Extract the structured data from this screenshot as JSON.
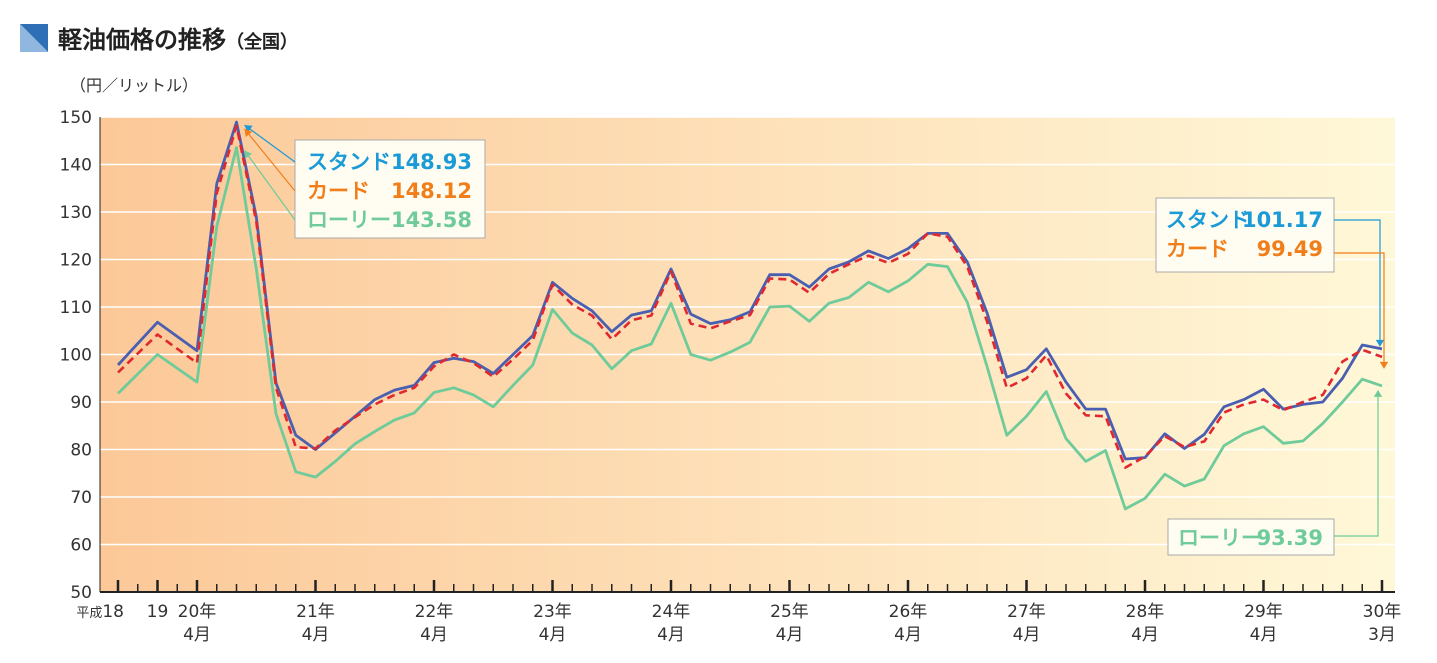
{
  "header": {
    "title": "軽油価格の推移",
    "subtitle": "（全国）",
    "unit": "（円／リットル）"
  },
  "colors": {
    "stand": "#4a5fb0",
    "card": "#e0282e",
    "lorry": "#6fcb9a",
    "stand_label": "#1a9ad6",
    "card_label": "#f07e1a",
    "lorry_label": "#6fcb9a",
    "bg_left": "#fcc898",
    "bg_right": "#fff8d8",
    "grid": "#ffffff"
  },
  "chart_data": {
    "type": "line",
    "ylim": [
      50,
      150
    ],
    "yticks": [
      50,
      60,
      70,
      80,
      90,
      100,
      110,
      120,
      130,
      140,
      150
    ],
    "grid": true,
    "x_labels": [
      {
        "index": 0,
        "line1": "平成18",
        "line2": "",
        "small_prefix": true
      },
      {
        "index": 1,
        "line1": "19",
        "line2": ""
      },
      {
        "index": 2,
        "line1": "20年",
        "line2": "4月"
      },
      {
        "index": 5,
        "line1": "21年",
        "line2": "4月"
      },
      {
        "index": 8,
        "line1": "22年",
        "line2": "4月"
      },
      {
        "index": 11,
        "line1": "23年",
        "line2": "4月"
      },
      {
        "index": 14,
        "line1": "24年",
        "line2": "4月"
      },
      {
        "index": 17,
        "line1": "25年",
        "line2": "4月"
      },
      {
        "index": 20,
        "line1": "26年",
        "line2": "4月"
      },
      {
        "index": 23,
        "line1": "27年",
        "line2": "4月"
      },
      {
        "index": 26,
        "line1": "28年",
        "line2": "4月"
      },
      {
        "index": 29,
        "line1": "29年",
        "line2": "4月"
      },
      {
        "index": 32,
        "line1": "30年",
        "line2": "3月"
      }
    ],
    "series": [
      {
        "key": "stand",
        "name": "スタンド",
        "style": "solid",
        "points": [
          [
            0,
            97.8
          ],
          [
            1,
            106.8
          ],
          [
            2,
            100.8
          ],
          [
            2.5,
            136
          ],
          [
            3,
            148.93
          ],
          [
            3.5,
            129
          ],
          [
            4,
            94
          ],
          [
            4.5,
            83
          ],
          [
            5,
            80
          ],
          [
            5.5,
            83.5
          ],
          [
            6,
            87
          ],
          [
            6.5,
            90.5
          ],
          [
            7,
            92.5
          ],
          [
            7.5,
            93.5
          ],
          [
            8,
            98.3
          ],
          [
            8.5,
            99.2
          ],
          [
            9,
            98.5
          ],
          [
            9.5,
            96
          ],
          [
            10,
            100
          ],
          [
            10.5,
            104
          ],
          [
            11,
            115.2
          ],
          [
            11.5,
            111.8
          ],
          [
            12,
            109.2
          ],
          [
            12.5,
            104.8
          ],
          [
            13,
            108.3
          ],
          [
            13.5,
            109.2
          ],
          [
            14,
            118
          ],
          [
            14.5,
            108.5
          ],
          [
            15,
            106.5
          ],
          [
            15.5,
            107.3
          ],
          [
            16,
            109
          ],
          [
            16.5,
            116.8
          ],
          [
            17,
            116.8
          ],
          [
            17.5,
            114.2
          ],
          [
            18,
            118
          ],
          [
            18.5,
            119.5
          ],
          [
            19,
            121.8
          ],
          [
            19.5,
            120.2
          ],
          [
            20,
            122.3
          ],
          [
            20.5,
            125.5
          ],
          [
            21,
            125.5
          ],
          [
            21.5,
            119.5
          ],
          [
            22,
            108.8
          ],
          [
            22.5,
            95.2
          ],
          [
            23,
            96.8
          ],
          [
            23.5,
            101.2
          ],
          [
            24,
            94.2
          ],
          [
            24.5,
            88.5
          ],
          [
            25,
            88.5
          ],
          [
            25.5,
            78
          ],
          [
            26,
            78.3
          ],
          [
            26.5,
            83.3
          ],
          [
            27,
            80.2
          ],
          [
            27.5,
            83.2
          ],
          [
            28,
            89
          ],
          [
            28.5,
            90.5
          ],
          [
            29,
            92.7
          ],
          [
            29.5,
            88.5
          ],
          [
            30,
            89.5
          ],
          [
            30.5,
            90
          ],
          [
            31,
            95
          ],
          [
            31.5,
            102
          ],
          [
            32,
            101.17
          ]
        ]
      },
      {
        "key": "card",
        "name": "カード",
        "style": "dashed",
        "points": [
          [
            0,
            96.2
          ],
          [
            1,
            104.2
          ],
          [
            2,
            98.2
          ],
          [
            2.5,
            134
          ],
          [
            3,
            148.12
          ],
          [
            3.5,
            128
          ],
          [
            4,
            93
          ],
          [
            4.5,
            80.5
          ],
          [
            5,
            80.2
          ],
          [
            5.5,
            84
          ],
          [
            6,
            86.8
          ],
          [
            6.5,
            89.5
          ],
          [
            7,
            91.5
          ],
          [
            7.5,
            93
          ],
          [
            8,
            97.5
          ],
          [
            8.5,
            100
          ],
          [
            9,
            98.2
          ],
          [
            9.5,
            95.3
          ],
          [
            10,
            99
          ],
          [
            10.5,
            103
          ],
          [
            11,
            114.7
          ],
          [
            11.5,
            110.5
          ],
          [
            12,
            108.2
          ],
          [
            12.5,
            103.2
          ],
          [
            13,
            107.2
          ],
          [
            13.5,
            108.2
          ],
          [
            14,
            117.5
          ],
          [
            14.5,
            106.5
          ],
          [
            15,
            105.5
          ],
          [
            15.5,
            107
          ],
          [
            16,
            108.3
          ],
          [
            16.5,
            116
          ],
          [
            17,
            115.8
          ],
          [
            17.5,
            113
          ],
          [
            18,
            117
          ],
          [
            18.5,
            119
          ],
          [
            19,
            120.8
          ],
          [
            19.5,
            119.3
          ],
          [
            20,
            121.2
          ],
          [
            20.5,
            125.5
          ],
          [
            21,
            124.8
          ],
          [
            21.5,
            118.5
          ],
          [
            22,
            107
          ],
          [
            22.5,
            93
          ],
          [
            23,
            95
          ],
          [
            23.5,
            99.8
          ],
          [
            24,
            91.8
          ],
          [
            24.5,
            87.2
          ],
          [
            25,
            87
          ],
          [
            25.5,
            76.2
          ],
          [
            26,
            78.5
          ],
          [
            26.5,
            82.8
          ],
          [
            27,
            80.5
          ],
          [
            27.5,
            81.7
          ],
          [
            28,
            87.8
          ],
          [
            28.5,
            89.5
          ],
          [
            29,
            90.5
          ],
          [
            29.5,
            88.3
          ],
          [
            30,
            90
          ],
          [
            30.5,
            91.5
          ],
          [
            31,
            98.5
          ],
          [
            31.5,
            101
          ],
          [
            32,
            99.49
          ]
        ]
      },
      {
        "key": "lorry",
        "name": "ローリー",
        "style": "solid",
        "points": [
          [
            0,
            91.8
          ],
          [
            1,
            100
          ],
          [
            2,
            94.2
          ],
          [
            2.5,
            127
          ],
          [
            3,
            143.58
          ],
          [
            3.5,
            118
          ],
          [
            4,
            87.5
          ],
          [
            4.5,
            75.3
          ],
          [
            5,
            74.2
          ],
          [
            5.5,
            77.5
          ],
          [
            6,
            81.2
          ],
          [
            6.5,
            83.8
          ],
          [
            7,
            86.2
          ],
          [
            7.5,
            87.7
          ],
          [
            8,
            92
          ],
          [
            8.5,
            93
          ],
          [
            9,
            91.5
          ],
          [
            9.5,
            89
          ],
          [
            10,
            93.5
          ],
          [
            10.5,
            97.8
          ],
          [
            11,
            109.5
          ],
          [
            11.5,
            104.5
          ],
          [
            12,
            102
          ],
          [
            12.5,
            97
          ],
          [
            13,
            100.8
          ],
          [
            13.5,
            102.2
          ],
          [
            14,
            110.8
          ],
          [
            14.5,
            100
          ],
          [
            15,
            98.8
          ],
          [
            15.5,
            100.5
          ],
          [
            16,
            102.6
          ],
          [
            16.5,
            110
          ],
          [
            17,
            110.2
          ],
          [
            17.5,
            107
          ],
          [
            18,
            110.8
          ],
          [
            18.5,
            112
          ],
          [
            19,
            115.2
          ],
          [
            19.5,
            113.2
          ],
          [
            20,
            115.5
          ],
          [
            20.5,
            119
          ],
          [
            21,
            118.5
          ],
          [
            21.5,
            111
          ],
          [
            22,
            97.5
          ],
          [
            22.5,
            83
          ],
          [
            23,
            87
          ],
          [
            23.5,
            92.2
          ],
          [
            24,
            82.3
          ],
          [
            24.5,
            77.5
          ],
          [
            25,
            79.8
          ],
          [
            25.5,
            67.5
          ],
          [
            26,
            69.7
          ],
          [
            26.5,
            74.8
          ],
          [
            27,
            72.3
          ],
          [
            27.5,
            73.8
          ],
          [
            28,
            80.8
          ],
          [
            28.5,
            83.3
          ],
          [
            29,
            84.8
          ],
          [
            29.5,
            81.3
          ],
          [
            30,
            81.8
          ],
          [
            30.5,
            85.5
          ],
          [
            31,
            90
          ],
          [
            31.5,
            94.8
          ],
          [
            32,
            93.39
          ]
        ]
      }
    ],
    "callouts": {
      "peak": [
        {
          "key": "stand",
          "label": "スタンド",
          "value": "148.93"
        },
        {
          "key": "card",
          "label": "カード",
          "value": "148.12"
        },
        {
          "key": "lorry",
          "label": "ローリー",
          "value": "143.58"
        }
      ],
      "latest_top": [
        {
          "key": "stand",
          "label": "スタンド",
          "value": "101.17"
        },
        {
          "key": "card",
          "label": "カード",
          "value": "99.49"
        }
      ],
      "latest_bottom": [
        {
          "key": "lorry",
          "label": "ローリー",
          "value": "93.39"
        }
      ]
    }
  }
}
